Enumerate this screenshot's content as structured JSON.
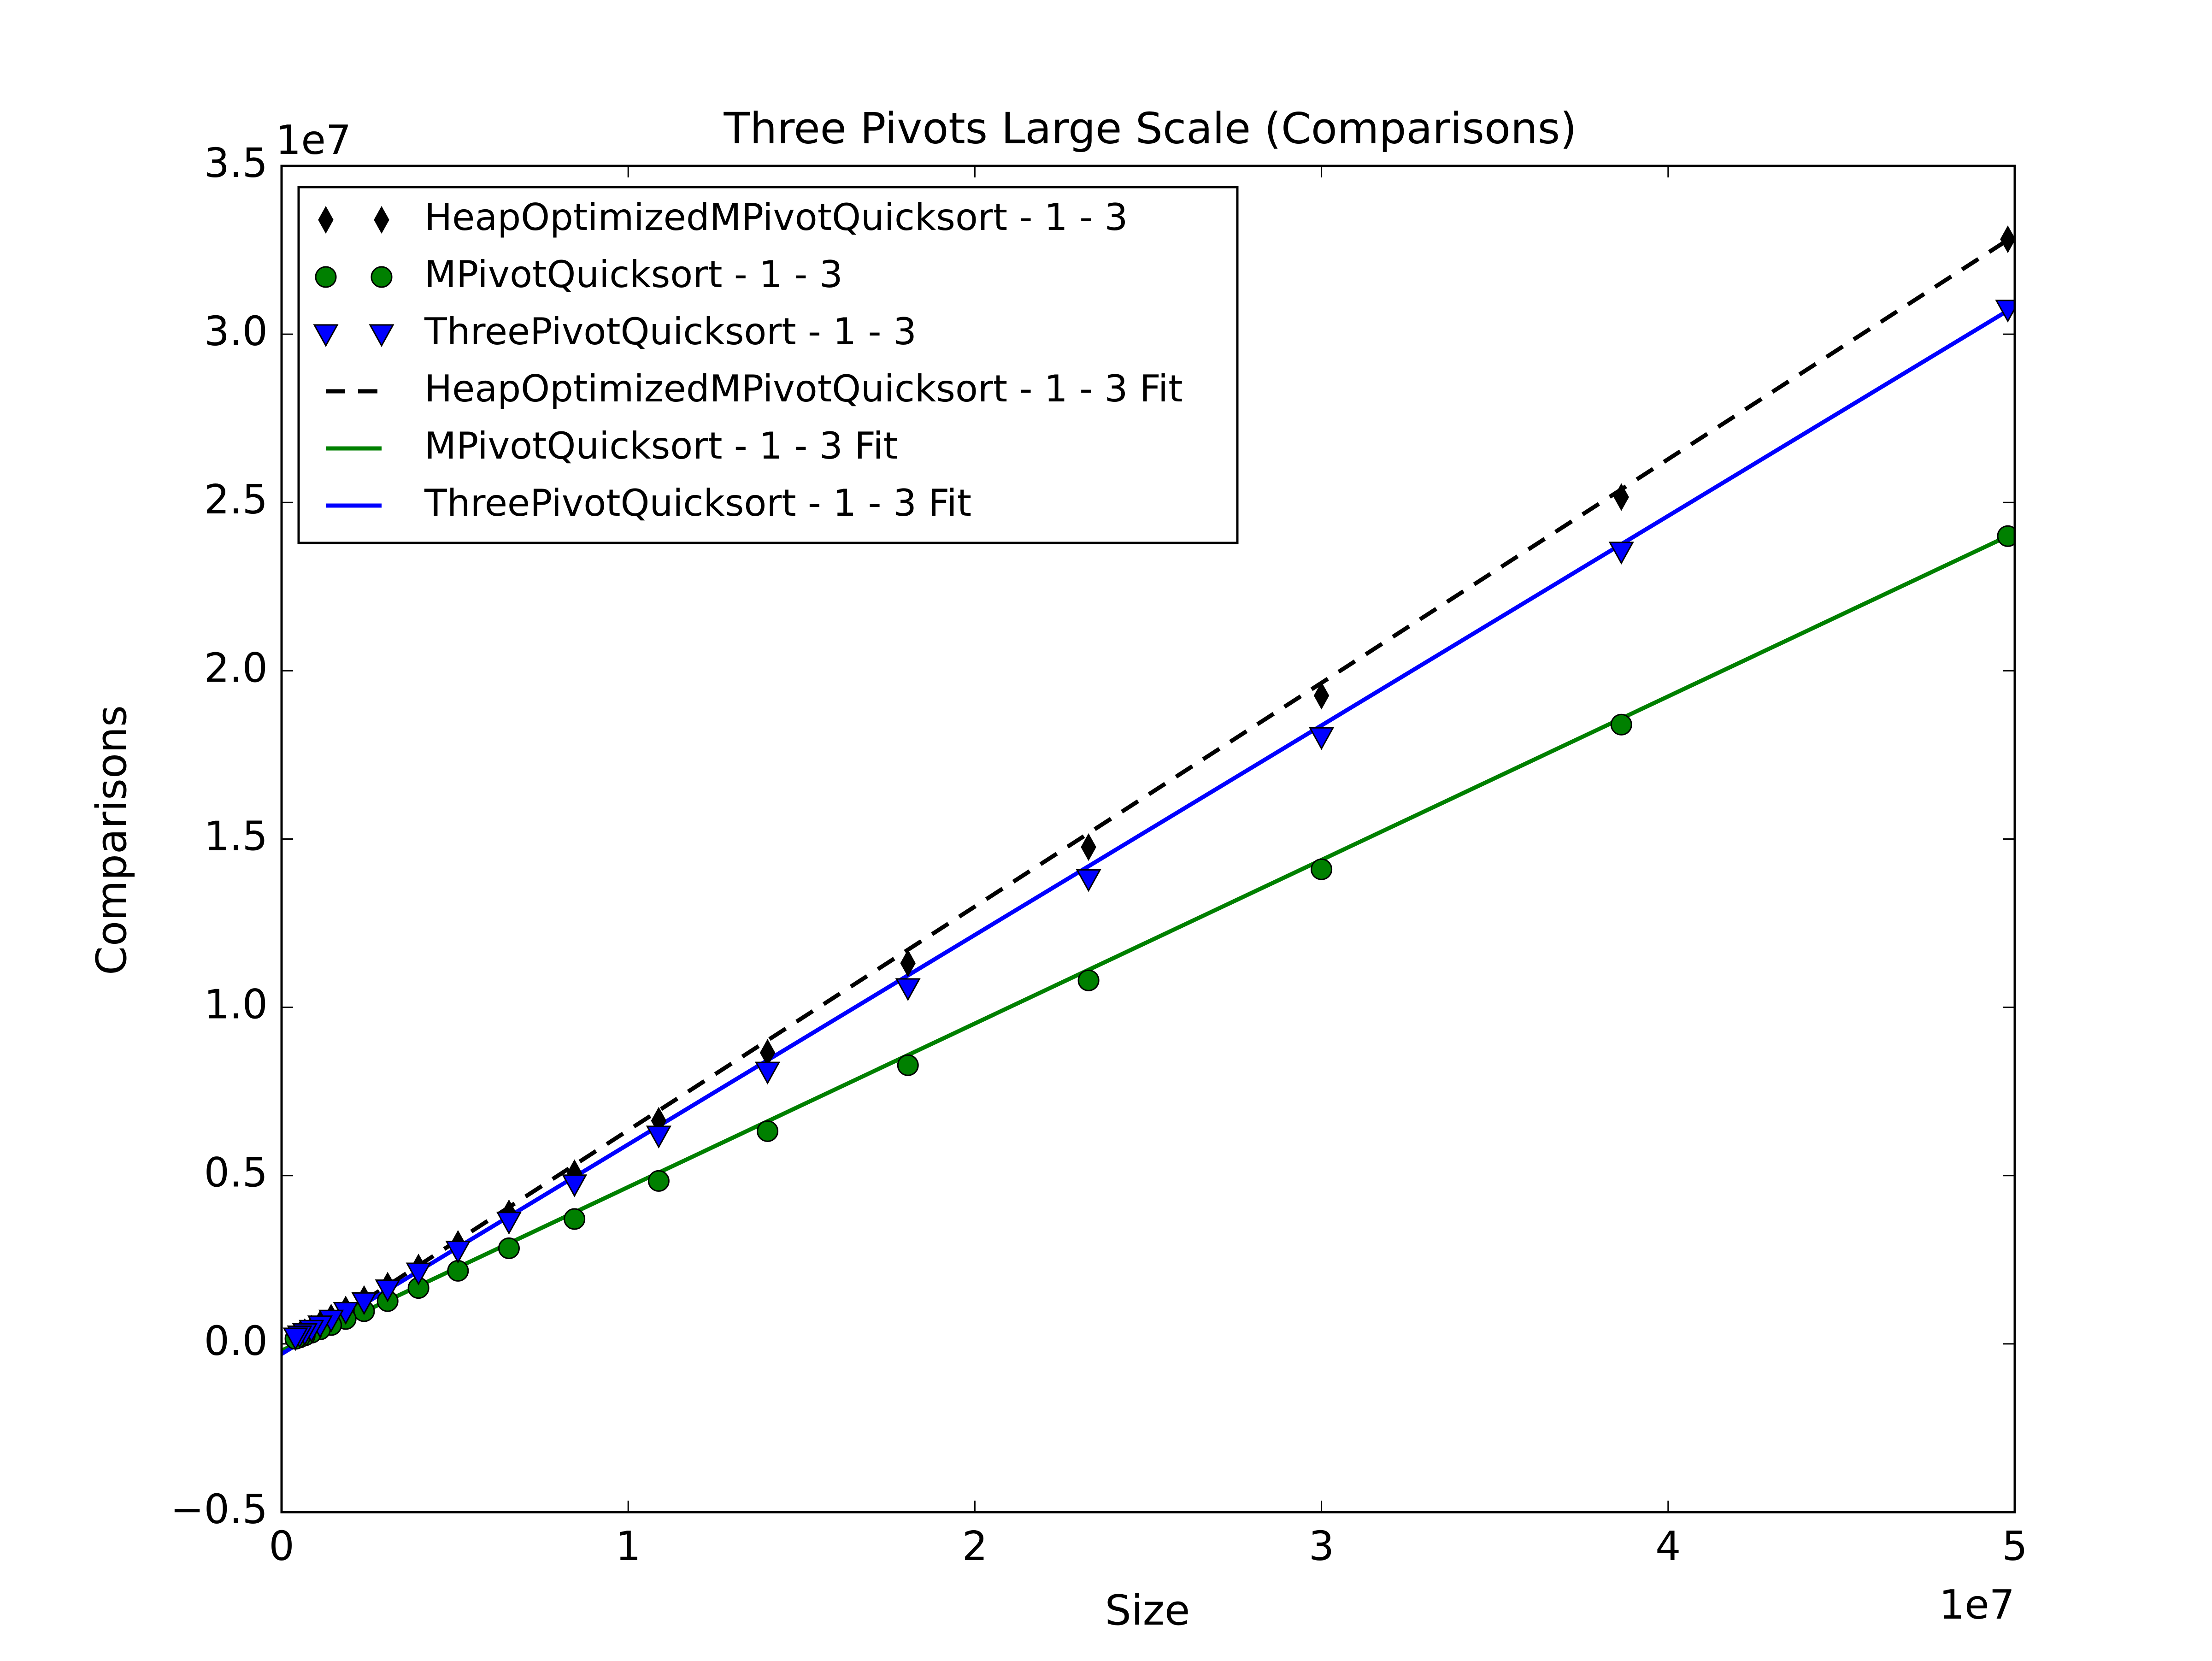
{
  "chart_data": {
    "type": "scatter",
    "title": "Three Pivots Large Scale (Comparisons)",
    "x_label": "Size",
    "y_label": "Comparisons",
    "x_offset_label": "1e7",
    "y_offset_label": "1e7",
    "xlim": [
      0,
      5
    ],
    "ylim": [
      -0.5,
      3.5
    ],
    "xticks": [
      0,
      1,
      2,
      3,
      4,
      5
    ],
    "yticks": [
      {
        "value": -0.5,
        "label": "−0.5"
      },
      {
        "value": 0,
        "label": "0.0"
      },
      0.5,
      {
        "value": 1,
        "label": "1.0"
      },
      1.5,
      {
        "value": 2,
        "label": "2.0"
      },
      2.5,
      {
        "value": 3,
        "label": "3.0"
      },
      3.5
    ],
    "legend": "upper left",
    "series": [
      {
        "name": "HeapOptimizedMPivotQuicksort - 1 - 3",
        "color": "#000000",
        "marker": "diamond",
        "x": [
          4.98,
          3.865,
          3.0,
          2.328,
          1.807,
          1.402,
          1.088,
          0.845,
          0.656,
          0.509,
          0.395,
          0.306,
          0.238,
          0.185,
          0.143,
          0.111,
          0.086,
          0.067,
          0.052,
          0.04
        ],
        "values": [
          3.282,
          2.516,
          1.926,
          1.476,
          1.131,
          0.865,
          0.663,
          0.507,
          0.388,
          0.297,
          0.227,
          0.173,
          0.133,
          0.102,
          0.078,
          0.059,
          0.045,
          0.035,
          0.026,
          0.02
        ]
      },
      {
        "name": "MPivotQuicksort - 1 - 3",
        "color": "#008000",
        "marker": "circle",
        "x": [
          4.98,
          3.865,
          3.0,
          2.328,
          1.807,
          1.402,
          1.088,
          0.845,
          0.656,
          0.509,
          0.395,
          0.306,
          0.238,
          0.185,
          0.143,
          0.111,
          0.086,
          0.067,
          0.052,
          0.04
        ],
        "values": [
          2.4,
          1.84,
          1.41,
          1.08,
          0.828,
          0.632,
          0.484,
          0.371,
          0.284,
          0.217,
          0.166,
          0.127,
          0.097,
          0.074,
          0.056,
          0.043,
          0.033,
          0.025,
          0.019,
          0.015
        ]
      },
      {
        "name": "ThreePivotQuicksort - 1 - 3",
        "color": "#0000ff",
        "marker": "triangle_down",
        "x": [
          4.98,
          3.865,
          3.0,
          2.328,
          1.807,
          1.402,
          1.088,
          0.845,
          0.656,
          0.509,
          0.395,
          0.306,
          0.238,
          0.185,
          0.143,
          0.111,
          0.086,
          0.067,
          0.052,
          0.04
        ],
        "values": [
          3.073,
          2.354,
          1.803,
          1.381,
          1.057,
          0.809,
          0.619,
          0.474,
          0.363,
          0.277,
          0.212,
          0.162,
          0.124,
          0.095,
          0.072,
          0.055,
          0.042,
          0.032,
          0.025,
          0.019
        ]
      },
      {
        "name": "HeapOptimizedMPivotQuicksort - 1 - 3 Fit",
        "color": "#000000",
        "linestyle": "dashed",
        "x": [
          0,
          4.98
        ],
        "values": [
          -0.03,
          3.28
        ]
      },
      {
        "name": "MPivotQuicksort - 1 - 3 Fit",
        "color": "#008000",
        "linestyle": "solid",
        "x": [
          0,
          4.98
        ],
        "values": [
          -0.02,
          2.4
        ]
      },
      {
        "name": "ThreePivotQuicksort - 1 - 3 Fit",
        "color": "#0000ff",
        "linestyle": "solid",
        "x": [
          0,
          4.98
        ],
        "values": [
          -0.03,
          3.07
        ]
      }
    ]
  }
}
